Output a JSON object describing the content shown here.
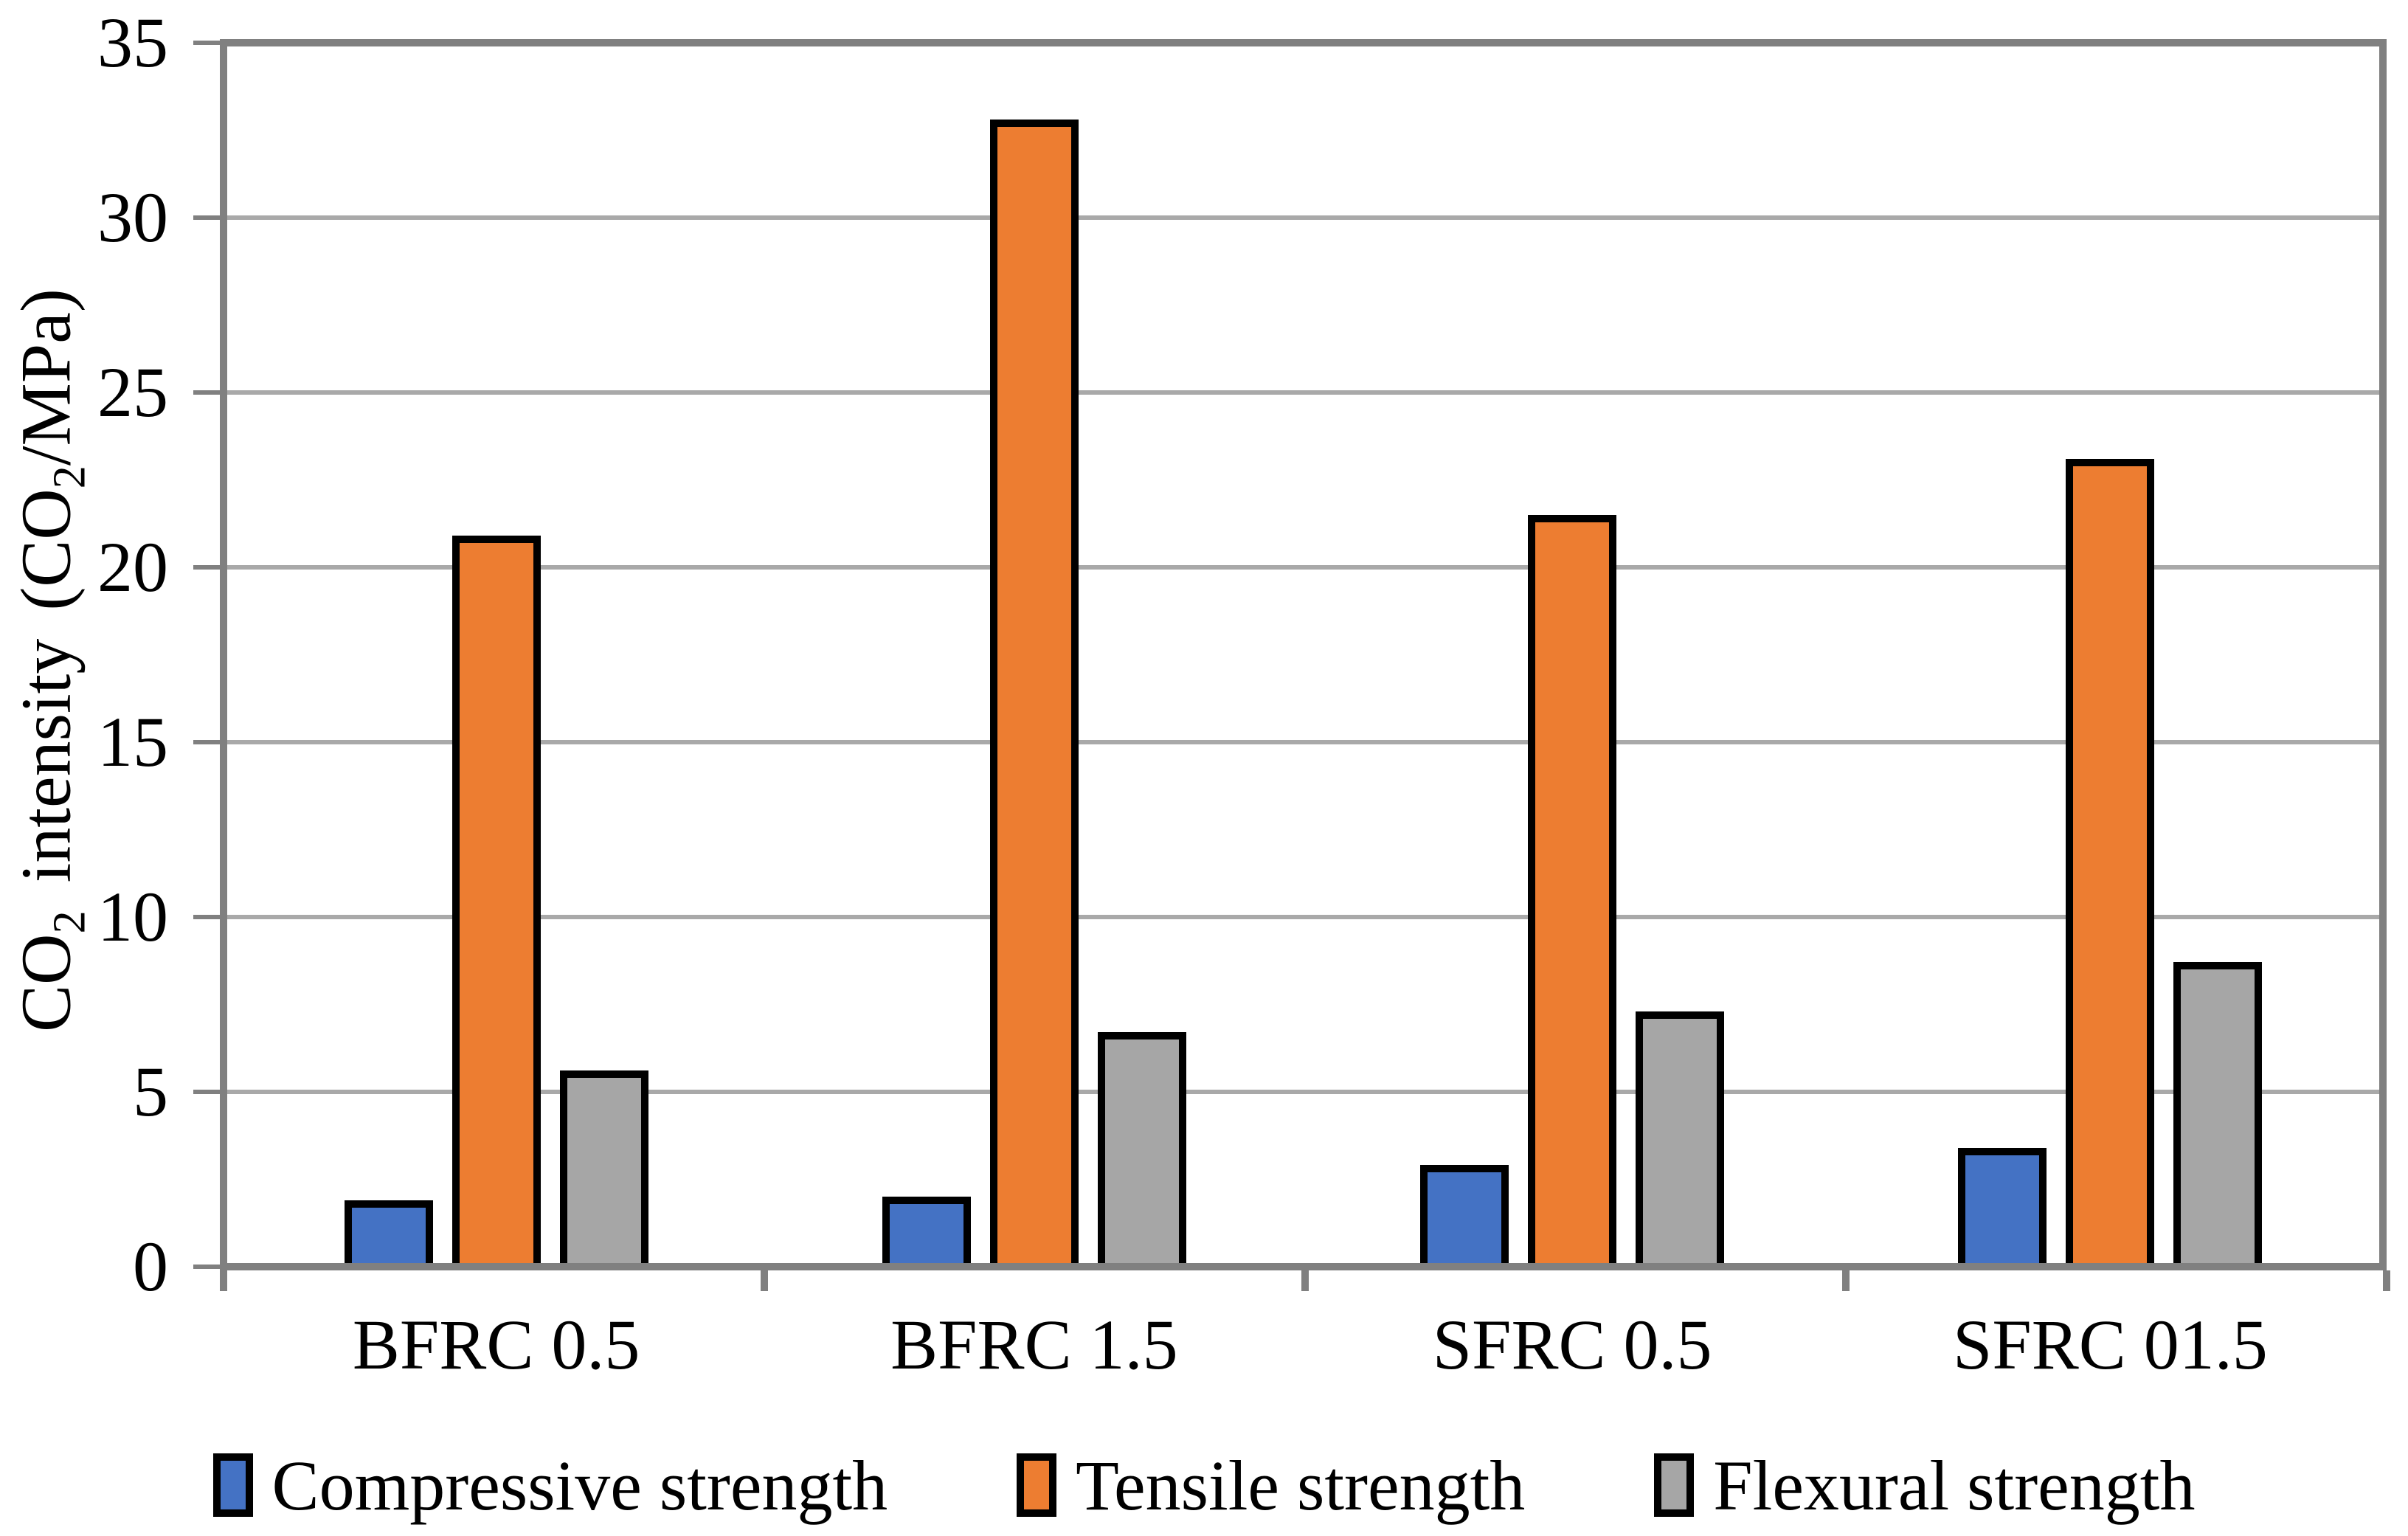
{
  "chart_data": {
    "type": "bar",
    "title": "",
    "categories": [
      "BFRC 0.5",
      "BFRC 1.5",
      "SFRC 0.5",
      "SFRC 01.5"
    ],
    "series": [
      {
        "name": "Compressive strength",
        "color": "#4472C4",
        "values": [
          1.8,
          1.9,
          2.8,
          3.3
        ]
      },
      {
        "name": "Tensile strength",
        "color": "#ED7D31",
        "values": [
          20.8,
          32.7,
          21.4,
          23.0
        ]
      },
      {
        "name": "Flexural strength",
        "color": "#A6A6A6",
        "values": [
          5.5,
          6.6,
          7.2,
          8.6
        ]
      }
    ],
    "ylabel_parts": {
      "p1": "CO",
      "s1": "2",
      "p2": " intensity (CO",
      "s2": "2",
      "p3": "/MPa)"
    },
    "y_axis": {
      "min": 0,
      "max": 35,
      "step": 5,
      "ticks": [
        0,
        5,
        10,
        15,
        20,
        25,
        30,
        35
      ]
    },
    "grid": true,
    "legend_position": "bottom",
    "colors": {
      "axis_frame": "#808080",
      "gridline": "#A9A9A9",
      "bar_border": "#000000",
      "text": "#000000",
      "background": "#ffffff"
    }
  }
}
